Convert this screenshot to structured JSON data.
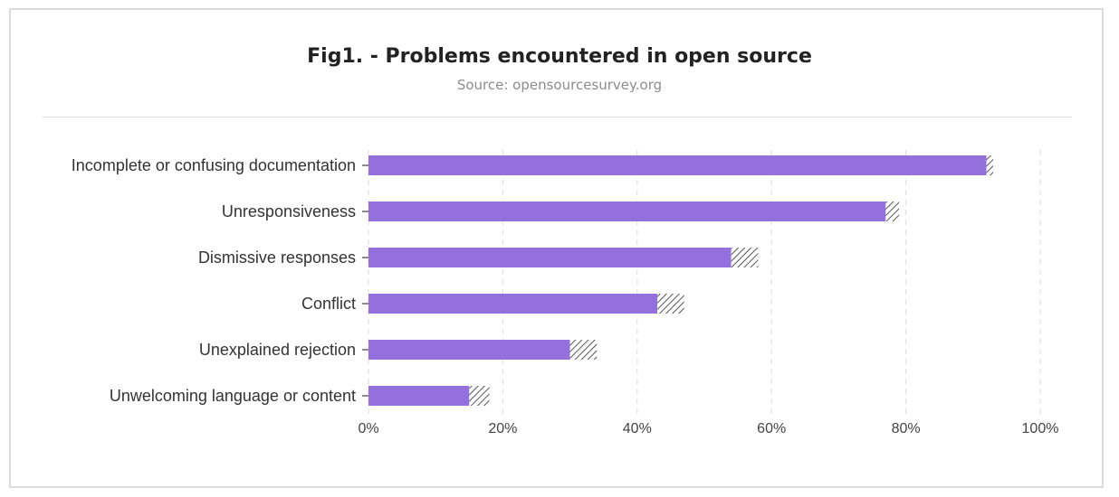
{
  "header": {
    "title": "Fig1. - Problems encountered in open source",
    "subtitle": "Source: opensourcesurvey.org"
  },
  "colors": {
    "bar": "#9370db",
    "hatch": "#555555",
    "grid": "#dddddd",
    "tick": "#666666"
  },
  "chart_data": {
    "type": "bar",
    "orientation": "horizontal",
    "categories": [
      "Incomplete or confusing documentation",
      "Unresponsiveness",
      "Dismissive responses",
      "Conflict",
      "Unexplained rejection",
      "Unwelcoming language or content"
    ],
    "values": [
      92,
      77,
      54,
      43,
      30,
      15
    ],
    "error_ranges": [
      [
        92,
        93
      ],
      [
        77,
        79
      ],
      [
        54,
        58
      ],
      [
        43,
        47
      ],
      [
        30,
        34
      ],
      [
        15,
        18
      ]
    ],
    "xlim": [
      0,
      100
    ],
    "xticks": [
      "0%",
      "20%",
      "40%",
      "60%",
      "80%",
      "100%"
    ],
    "xtick_values": [
      0,
      20,
      40,
      60,
      80,
      100
    ],
    "grid": true,
    "legend": "none"
  }
}
